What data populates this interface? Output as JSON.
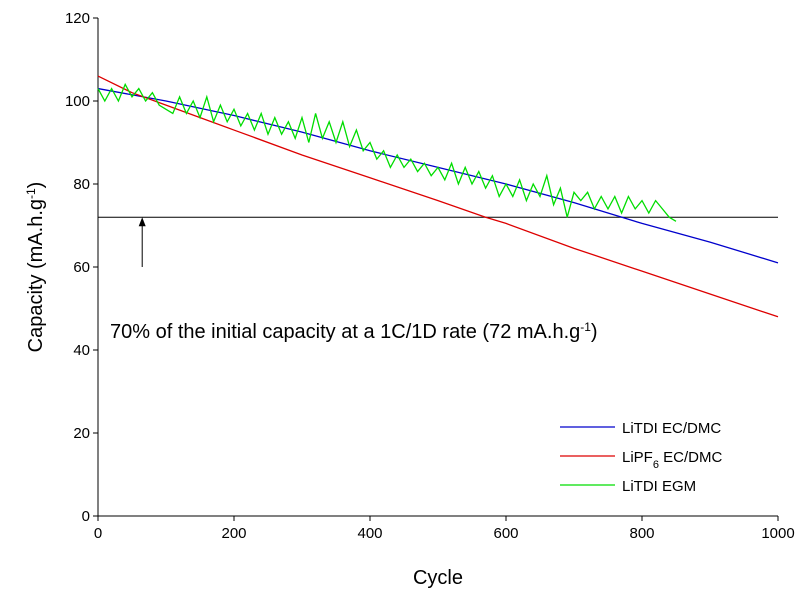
{
  "chart_data": {
    "type": "line",
    "xlabel": "Cycle",
    "ylabel": [
      "Capacity (mA.h.g",
      "-1",
      ")"
    ],
    "xlim": [
      0,
      1000
    ],
    "xticks": [
      0,
      200,
      400,
      600,
      800,
      1000
    ],
    "ylim": [
      0,
      120
    ],
    "yticks": [
      0,
      20,
      40,
      60,
      80,
      100,
      120
    ],
    "reference_line": {
      "y": 72,
      "color": "#000000"
    },
    "annotation": {
      "text": [
        "70% of the initial capacity at a 1C/1D rate (72 mA.h.g",
        "-1",
        ")"
      ],
      "arrow_x": 65,
      "arrow_from": 60,
      "arrow_to": 72
    },
    "legend": "lower right",
    "series": [
      {
        "name": [
          "LiTDI EC/DMC"
        ],
        "color": "#0000cc",
        "x": [
          0,
          100,
          200,
          300,
          400,
          500,
          600,
          700,
          800,
          900,
          1000
        ],
        "values": [
          103,
          100,
          96.5,
          92.5,
          88,
          84,
          80,
          75.5,
          70.5,
          66,
          61
        ]
      },
      {
        "name": [
          "LiPF",
          "6",
          " EC/DMC"
        ],
        "color": "#dd0000",
        "x": [
          0,
          50,
          100,
          200,
          300,
          400,
          500,
          570,
          600,
          700,
          800,
          900,
          1000
        ],
        "values": [
          106,
          102,
          99,
          93,
          87,
          81.5,
          76,
          72,
          70.5,
          64.5,
          59,
          53.5,
          48
        ]
      },
      {
        "name": [
          "LiTDI EGM"
        ],
        "color": "#00dd00",
        "x": [
          0,
          10,
          20,
          30,
          40,
          50,
          60,
          70,
          80,
          90,
          100,
          110,
          120,
          130,
          140,
          150,
          160,
          170,
          180,
          190,
          200,
          210,
          220,
          230,
          240,
          250,
          260,
          270,
          280,
          290,
          300,
          310,
          320,
          330,
          340,
          350,
          360,
          370,
          380,
          390,
          400,
          410,
          420,
          430,
          440,
          450,
          460,
          470,
          480,
          490,
          500,
          510,
          520,
          530,
          540,
          550,
          560,
          570,
          580,
          590,
          600,
          610,
          620,
          630,
          640,
          650,
          660,
          670,
          680,
          690,
          700,
          710,
          720,
          730,
          740,
          750,
          760,
          770,
          780,
          790,
          800,
          810,
          820,
          830,
          840,
          850
        ],
        "values": [
          103,
          100,
          103,
          100,
          104,
          101,
          103,
          100,
          102,
          99,
          98,
          97,
          101,
          97,
          100,
          96,
          101,
          95,
          99,
          95,
          98,
          94,
          97,
          93,
          97,
          92,
          96,
          92,
          95,
          91,
          96,
          90,
          97,
          91,
          95,
          90,
          95,
          89,
          93,
          88,
          90,
          86,
          88,
          84,
          87,
          84,
          86,
          83,
          85,
          82,
          84,
          81,
          85,
          80,
          84,
          80,
          83,
          79,
          82,
          77,
          80,
          77,
          81,
          76,
          80,
          77,
          82,
          75,
          79,
          72,
          78,
          76,
          78,
          74,
          77,
          74,
          77,
          73,
          77,
          74,
          76,
          73,
          76,
          74,
          72,
          71
        ]
      }
    ]
  }
}
